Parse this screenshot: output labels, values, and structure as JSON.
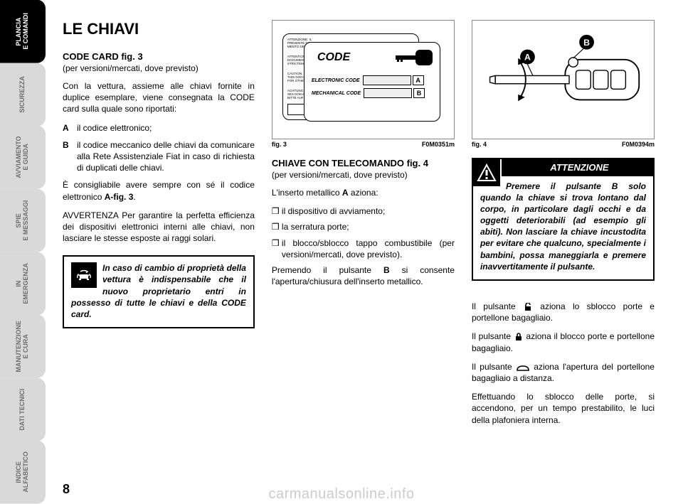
{
  "sidebar": {
    "tabs": [
      {
        "label": "PLANCIA\nE COMANDI",
        "active": true
      },
      {
        "label": "SICUREZZA",
        "active": false
      },
      {
        "label": "AVVIAMENTO\nE GUIDA",
        "active": false
      },
      {
        "label": "SPIE\nE MESSAGGI",
        "active": false
      },
      {
        "label": "IN\nEMERGENZA",
        "active": false
      },
      {
        "label": "MANUTENZIONE\nE CURA",
        "active": false
      },
      {
        "label": "DATI TECNICI",
        "active": false
      },
      {
        "label": "INDICE\nALFABETICO",
        "active": false
      }
    ]
  },
  "page_number": "8",
  "footer_url": "carmanualsonline.info",
  "col_left": {
    "title": "LE CHIAVI",
    "sub1": "CODE CARD fig. 3",
    "sub1_note": "(per versioni/mercati, dove previsto)",
    "p1": "Con la vettura, assieme alle chiavi fornite in duplice esemplare, viene consegnata la CODE card sulla quale sono riportati:",
    "item_a_letter": "A",
    "item_a": "il codice elettronico;",
    "item_b_letter": "B",
    "item_b": "il codice meccanico delle chiavi da comunicare alla Rete Assistenziale Fiat in caso di richiesta di duplicati delle chiavi.",
    "p2_a": "È consigliabile avere sempre con sé il codice elettronico ",
    "p2_b": "A-fig. 3",
    "p2_c": ".",
    "p3": "AVVERTENZA Per garantire la perfetta efficienza dei dispositivi elettronici interni alle chiavi, non lasciare le stesse esposte ai raggi solari.",
    "warn": "In caso di cambio di proprietà della vettura è indispensabile che il nuovo proprietario entri in possesso di tutte le chiavi e della CODE card."
  },
  "fig3": {
    "caption_left": "fig. 3",
    "caption_right": "F0M0351m",
    "code_title": "CODE",
    "row1_label": "ELECTRONIC CODE",
    "row1_letter": "A",
    "row2_label": "MECHANICAL CODE",
    "row2_letter": "B"
  },
  "col_mid": {
    "sub": "CHIAVE CON TELECOMANDO fig. 4",
    "sub_note": "(per versioni/mercati, dove previsto)",
    "p1_a": "L'inserto metallico ",
    "p1_b": "A",
    "p1_c": " aziona:",
    "b1": "il dispositivo di avviamento;",
    "b2": "la serratura porte;",
    "b3": "il blocco/sblocco tappo combustibile (per versioni/mercati, dove previsto).",
    "p2_a": "Premendo il pulsante ",
    "p2_b": "B",
    "p2_c": " si consente l'apertura/chiusura dell'inserto metallico."
  },
  "fig4": {
    "caption_left": "fig. 4",
    "caption_right": "F0M0394m",
    "label_a": "A",
    "label_b": "B"
  },
  "col_right": {
    "attn_header": "ATTENZIONE",
    "attn_text": "Premere il pulsante B solo quando la chiave si trova lontano dal corpo, in particolare dagli occhi e da oggetti deteriorabili (ad esempio gli abiti). Non lasciare la chiave incustodita per evitare che qualcuno, specialmente i bambini, possa maneggiarla e premere inavvertitamente il pulsante.",
    "p1_a": "Il pulsante ",
    "p1_b": " aziona lo sblocco porte e portellone bagagliaio.",
    "p2_a": "Il pulsante ",
    "p2_b": " aziona il blocco porte e portellone bagagliaio.",
    "p3_a": "Il pulsante ",
    "p3_b": " aziona l'apertura del portellone bagagliaio a distanza.",
    "p4": "Effettuando lo sblocco delle porte, si accendono, per un tempo prestabilito, le luci della plafoniera interna."
  }
}
